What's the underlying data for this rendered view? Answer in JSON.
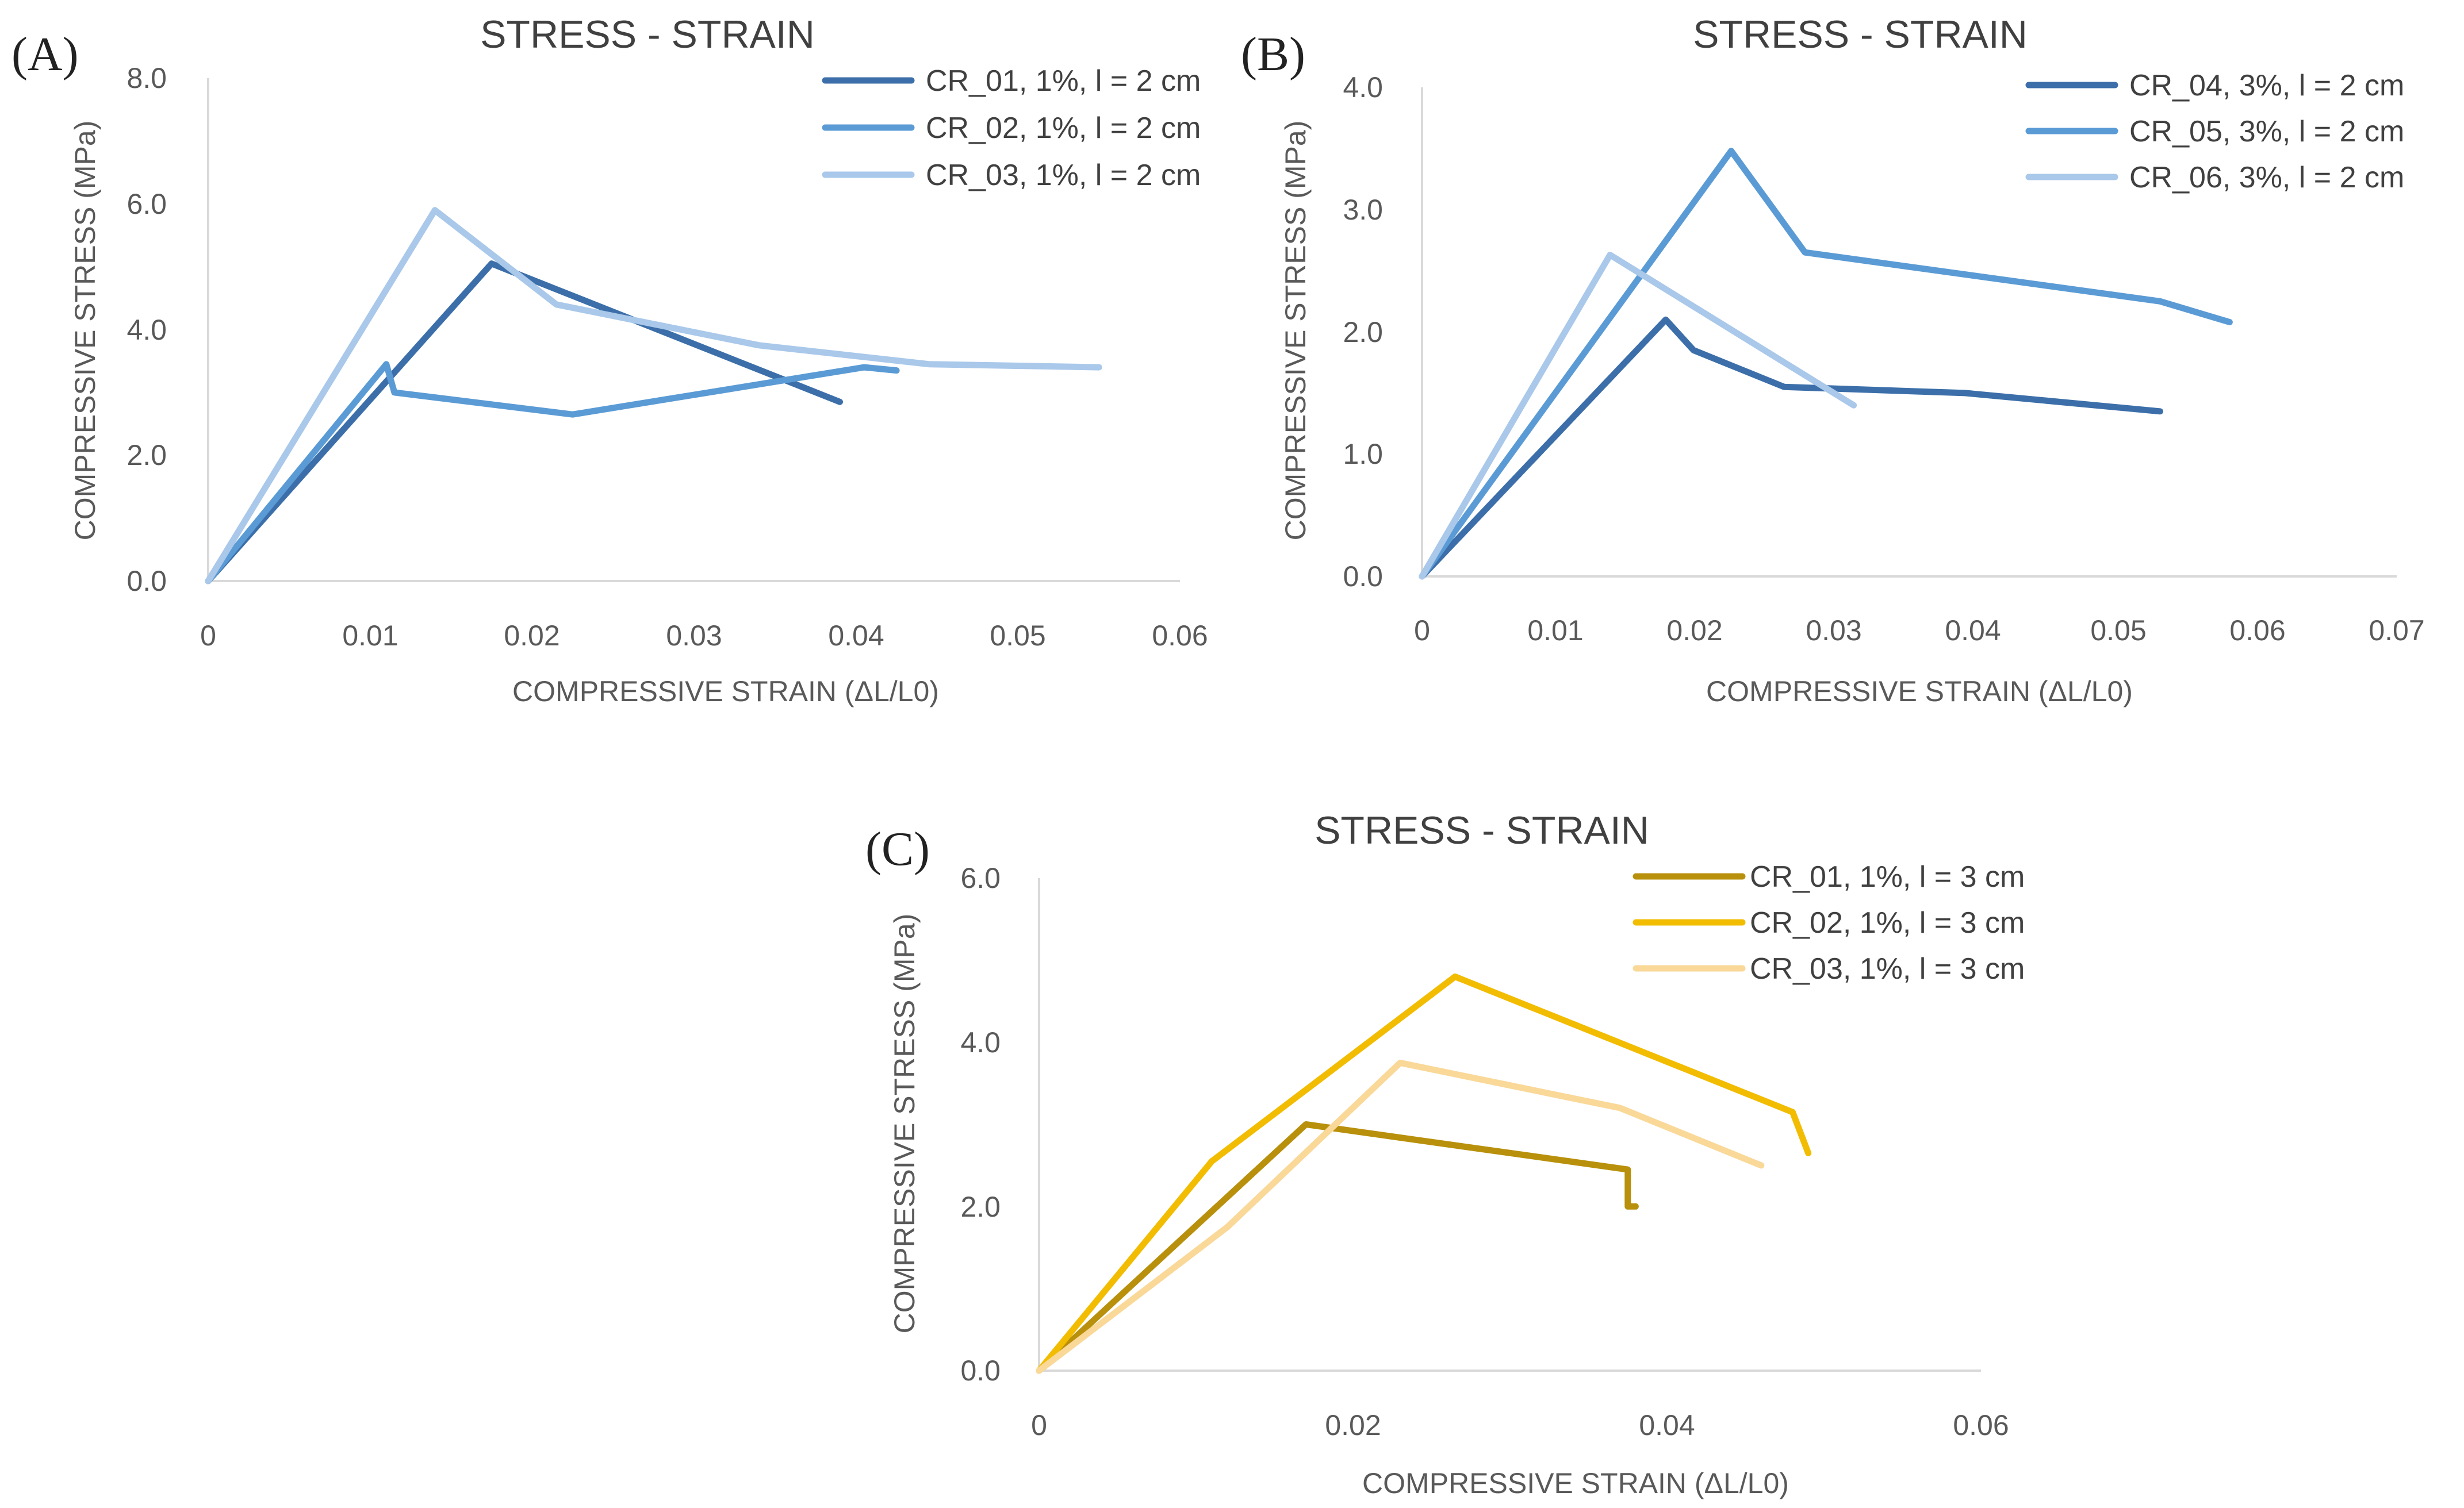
{
  "chart_data": [
    {
      "type": "line",
      "panel_label": "(A)",
      "title": "STRESS - STRAIN",
      "xlabel": "COMPRESSIVE STRAIN  (ΔL/L0)",
      "ylabel": "COMPRESSIVE STRESS (MPa)",
      "xlim": [
        0,
        0.06
      ],
      "ylim": [
        0,
        8
      ],
      "xticks": [
        0,
        0.01,
        0.02,
        0.03,
        0.04,
        0.05,
        0.06
      ],
      "xtick_labels": [
        "0",
        "0.01",
        "0.02",
        "0.03",
        "0.04",
        "0.05",
        "0.06"
      ],
      "yticks": [
        0,
        2,
        4,
        6,
        8
      ],
      "ytick_labels": [
        "0.0",
        "2.0",
        "4.0",
        "6.0",
        "8.0"
      ],
      "grid": false,
      "legend_position": "top-right",
      "series": [
        {
          "name": "CR_01, 1%, l = 2 cm",
          "color": "#3c6fa9",
          "x": [
            0,
            0.0175,
            0.039
          ],
          "y": [
            0,
            5.05,
            2.85
          ]
        },
        {
          "name": "CR_02, 1%, l = 2 cm",
          "color": "#5b9bd5",
          "x": [
            0,
            0.011,
            0.0115,
            0.0225,
            0.0405,
            0.0425
          ],
          "y": [
            0,
            3.45,
            3.0,
            2.65,
            3.4,
            3.35
          ]
        },
        {
          "name": "CR_03, 1%, l = 2 cm",
          "color": "#a9c8ea",
          "x": [
            0,
            0.014,
            0.0215,
            0.034,
            0.0445,
            0.055
          ],
          "y": [
            0,
            5.9,
            4.4,
            3.75,
            3.45,
            3.4
          ]
        }
      ]
    },
    {
      "type": "line",
      "panel_label": "(B)",
      "title": "STRESS - STRAIN",
      "xlabel": "COMPRESSIVE STRAIN  (ΔL/L0)",
      "ylabel": "COMPRESSIVE STRESS (MPa)",
      "xlim": [
        0,
        0.07
      ],
      "ylim": [
        0,
        4
      ],
      "xticks": [
        0,
        0.01,
        0.02,
        0.03,
        0.04,
        0.05,
        0.06,
        0.07
      ],
      "xtick_labels": [
        "0",
        "0.01",
        "0.02",
        "0.03",
        "0.04",
        "0.05",
        "0.06",
        "0.07"
      ],
      "yticks": [
        0,
        1,
        2,
        3,
        4
      ],
      "ytick_labels": [
        "0.0",
        "1.0",
        "2.0",
        "3.0",
        "4.0"
      ],
      "grid": false,
      "legend_position": "top-right",
      "series": [
        {
          "name": "CR_04, 3%, l = 2 cm",
          "color": "#3c6fa9",
          "x": [
            0,
            0.0175,
            0.0195,
            0.026,
            0.039,
            0.053
          ],
          "y": [
            0,
            2.1,
            1.85,
            1.55,
            1.5,
            1.35
          ]
        },
        {
          "name": "CR_05, 3%, l = 2 cm",
          "color": "#5b9bd5",
          "x": [
            0,
            0.0222,
            0.0275,
            0.053,
            0.058
          ],
          "y": [
            0,
            3.48,
            2.65,
            2.25,
            2.08
          ]
        },
        {
          "name": "CR_06, 3%, l = 2 cm",
          "color": "#a9c8ea",
          "x": [
            0,
            0.0135,
            0.031
          ],
          "y": [
            0,
            2.63,
            1.4
          ]
        }
      ]
    },
    {
      "type": "line",
      "panel_label": "(C)",
      "title": "STRESS - STRAIN",
      "xlabel": "COMPRESSIVE STRAIN  (ΔL/L0)",
      "ylabel": "COMPRESSIVE STRESS (MPa)",
      "xlim": [
        0,
        0.06
      ],
      "ylim": [
        0,
        6
      ],
      "xticks": [
        0,
        0.02,
        0.04,
        0.06
      ],
      "xtick_labels": [
        "0",
        "0.02",
        "0.04",
        "0.06"
      ],
      "yticks": [
        0,
        2,
        4,
        6
      ],
      "ytick_labels": [
        "0.0",
        "2.0",
        "4.0",
        "6.0"
      ],
      "grid": false,
      "legend_position": "top-right",
      "series": [
        {
          "name": "CR_01, 1%, l = 3 cm",
          "color": "#b8900b",
          "x": [
            0,
            0.017,
            0.0375,
            0.0375,
            0.038
          ],
          "y": [
            0,
            3.0,
            2.45,
            2.0,
            2.0
          ]
        },
        {
          "name": "CR_02, 1%, l = 3 cm",
          "color": "#f2bc00",
          "x": [
            0,
            0.011,
            0.0265,
            0.048,
            0.049
          ],
          "y": [
            0,
            2.55,
            4.8,
            3.15,
            2.65
          ]
        },
        {
          "name": "CR_03, 1%, l = 3 cm",
          "color": "#f9d898",
          "x": [
            0,
            0.012,
            0.023,
            0.037,
            0.046
          ],
          "y": [
            0,
            1.75,
            3.75,
            3.2,
            2.5
          ]
        }
      ]
    }
  ]
}
